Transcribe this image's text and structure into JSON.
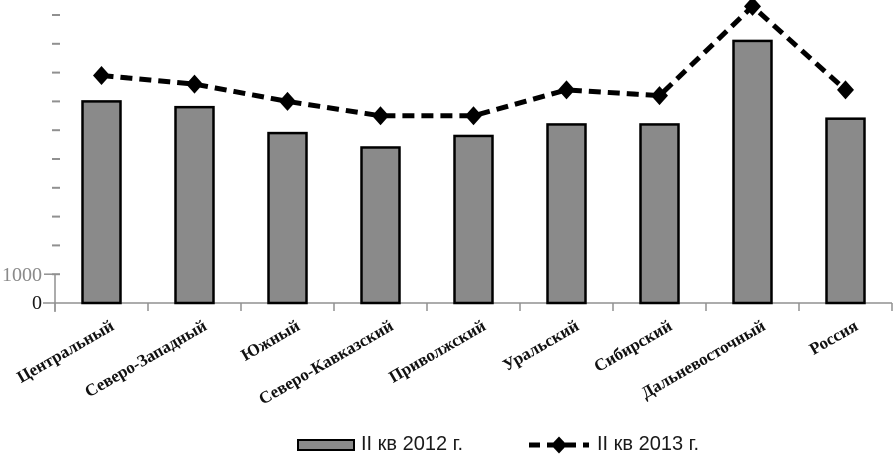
{
  "chart_data": {
    "type": "bar",
    "subtype": "bar-line-combo",
    "title": "",
    "xlabel": "",
    "ylabel": "",
    "categories": [
      "Центральный",
      "Северо-Западный",
      "Южный",
      "Северо-Кавказский",
      "Приволжский",
      "Уральский",
      "Сибирский",
      "Дальневосточный",
      "Россия"
    ],
    "series": [
      {
        "name": "II кв 2012 г.",
        "type": "bar",
        "values": [
          7000,
          6800,
          5900,
          5400,
          5800,
          6200,
          6200,
          9100,
          6400
        ]
      },
      {
        "name": "II кв 2013 г.",
        "type": "line",
        "values": [
          7900,
          7600,
          7000,
          6500,
          6500,
          7400,
          7200,
          10300,
          7400
        ]
      }
    ],
    "ylim": [
      0,
      10500
    ],
    "y_tick_interval": 1000,
    "y_tick_labels_visible": [
      "1000",
      "0"
    ],
    "grid": false,
    "legend_position": "bottom",
    "colors": {
      "bar_fill": "#8a8a8a",
      "bar_border": "#000000",
      "line": "#000000",
      "axis": "#909090",
      "background": "#ffffff"
    }
  }
}
